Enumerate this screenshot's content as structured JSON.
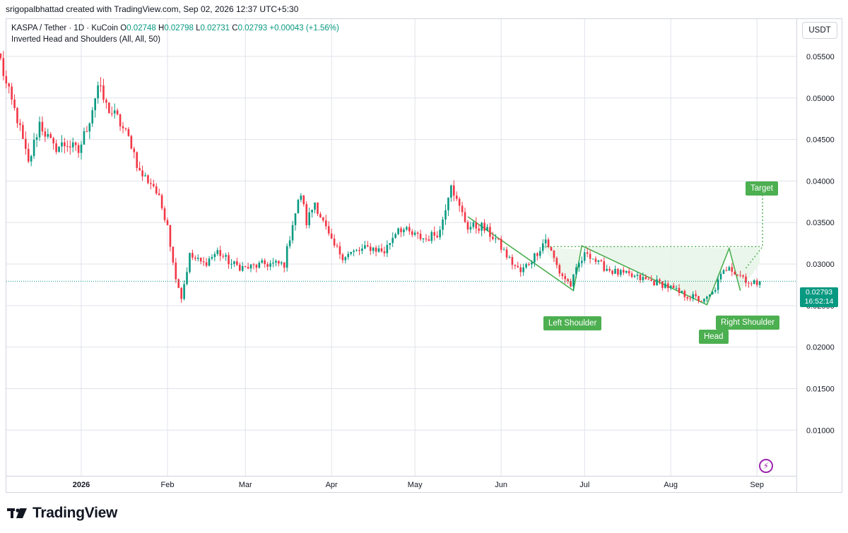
{
  "header": {
    "attribution": "srigopalbhattad created with TradingView.com, Sep 02, 2026 12:37 UTC+5:30"
  },
  "legend": {
    "symbol": "KASPA / Tether · 1D · KuCoin",
    "open_label": "O",
    "open": "0.02748",
    "high_label": "H",
    "high": "0.02798",
    "low_label": "L",
    "low": "0.02731",
    "close_label": "C",
    "close": "0.02793",
    "change": "+0.00043 (+1.56%)",
    "indicator": "Inverted Head and Shoulders (All, All, 50)"
  },
  "currency_button": "USDT",
  "price_tag": {
    "price": "0.02793",
    "countdown": "16:52:14"
  },
  "pattern_labels": {
    "left_shoulder": "Left Shoulder",
    "head": "Head",
    "right_shoulder": "Right Shoulder",
    "target": "Target"
  },
  "brand": {
    "name": "TradingView",
    "logo_icon": "tradingview-logo-icon"
  },
  "colors": {
    "up": "#089981",
    "down": "#f23645",
    "pattern": "#4caf50",
    "pattern_fill": "#e8f5e9",
    "grid": "#e0e3eb"
  },
  "chart_data": {
    "type": "candlestick",
    "title": "",
    "symbol": "KASPA / Tether",
    "interval": "1D",
    "exchange": "KuCoin",
    "ylim": [
      0.0045,
      0.0595
    ],
    "y_ticks": [
      "0.05500",
      "0.05000",
      "0.04500",
      "0.04000",
      "0.03500",
      "0.03000",
      "0.02500",
      "0.02000",
      "0.01500",
      "0.01000"
    ],
    "x_ticks": [
      "2026",
      "Feb",
      "Mar",
      "Apr",
      "May",
      "Jun",
      "Jul",
      "Aug",
      "Sep"
    ],
    "grid": true,
    "last_price": 0.02793,
    "close_path": [
      [
        "2025-12-03",
        0.0545
      ],
      [
        "2025-12-05",
        0.0515
      ],
      [
        "2025-12-09",
        0.0475
      ],
      [
        "2025-12-13",
        0.042
      ],
      [
        "2025-12-17",
        0.047
      ],
      [
        "2025-12-22",
        0.044
      ],
      [
        "2025-12-27",
        0.0445
      ],
      [
        "2025-12-31",
        0.0435
      ],
      [
        "2026-01-04",
        0.0475
      ],
      [
        "2026-01-07",
        0.0515
      ],
      [
        "2026-01-10",
        0.049
      ],
      [
        "2026-01-14",
        0.0475
      ],
      [
        "2026-01-19",
        0.0445
      ],
      [
        "2026-01-22",
        0.041
      ],
      [
        "2026-01-27",
        0.0395
      ],
      [
        "2026-02-01",
        0.035
      ],
      [
        "2026-02-03",
        0.03
      ],
      [
        "2026-02-06",
        0.026
      ],
      [
        "2026-02-09",
        0.031
      ],
      [
        "2026-02-14",
        0.03
      ],
      [
        "2026-02-19",
        0.0315
      ],
      [
        "2026-02-24",
        0.03
      ],
      [
        "2026-03-01",
        0.0295
      ],
      [
        "2026-03-08",
        0.03
      ],
      [
        "2026-03-15",
        0.03
      ],
      [
        "2026-03-18",
        0.035
      ],
      [
        "2026-03-21",
        0.0385
      ],
      [
        "2026-03-23",
        0.035
      ],
      [
        "2026-03-26",
        0.0375
      ],
      [
        "2026-03-29",
        0.035
      ],
      [
        "2026-04-01",
        0.0325
      ],
      [
        "2026-04-05",
        0.031
      ],
      [
        "2026-04-10",
        0.0315
      ],
      [
        "2026-04-15",
        0.032
      ],
      [
        "2026-04-20",
        0.0315
      ],
      [
        "2026-04-25",
        0.0345
      ],
      [
        "2026-04-30",
        0.0335
      ],
      [
        "2026-05-05",
        0.033
      ],
      [
        "2026-05-10",
        0.034
      ],
      [
        "2026-05-12",
        0.037
      ],
      [
        "2026-05-14",
        0.04
      ],
      [
        "2026-05-16",
        0.0375
      ],
      [
        "2026-05-18",
        0.036
      ],
      [
        "2026-05-20",
        0.0345
      ],
      [
        "2026-05-25",
        0.0345
      ],
      [
        "2026-05-30",
        0.033
      ],
      [
        "2026-06-04",
        0.0305
      ],
      [
        "2026-06-08",
        0.029
      ],
      [
        "2026-06-13",
        0.031
      ],
      [
        "2026-06-17",
        0.033
      ],
      [
        "2026-06-22",
        0.029
      ],
      [
        "2026-06-26",
        0.0275
      ],
      [
        "2026-06-29",
        0.03
      ],
      [
        "2026-07-02",
        0.0315
      ],
      [
        "2026-07-06",
        0.03
      ],
      [
        "2026-07-12",
        0.029
      ],
      [
        "2026-07-18",
        0.0285
      ],
      [
        "2026-07-24",
        0.028
      ],
      [
        "2026-07-30",
        0.0275
      ],
      [
        "2026-08-04",
        0.0265
      ],
      [
        "2026-08-09",
        0.026
      ],
      [
        "2026-08-13",
        0.0255
      ],
      [
        "2026-08-16",
        0.0265
      ],
      [
        "2026-08-19",
        0.0285
      ],
      [
        "2026-08-22",
        0.03
      ],
      [
        "2026-08-24",
        0.029
      ],
      [
        "2026-08-27",
        0.0285
      ],
      [
        "2026-08-30",
        0.0275
      ],
      [
        "2026-09-02",
        0.02793
      ]
    ],
    "pattern": {
      "name": "Inverted Head and Shoulders",
      "points": [
        {
          "label": "",
          "date": "2026-05-20",
          "price": 0.0357
        },
        {
          "label": "Left Shoulder",
          "date": "2026-06-27",
          "price": 0.0268
        },
        {
          "label": "",
          "date": "2026-06-30",
          "price": 0.0322
        },
        {
          "label": "Head",
          "date": "2026-08-14",
          "price": 0.0251
        },
        {
          "label": "",
          "date": "2026-08-22",
          "price": 0.0319
        },
        {
          "label": "Right Shoulder",
          "date": "2026-08-26",
          "price": 0.0268
        }
      ],
      "neckline": 0.0321,
      "target": {
        "label": "Target",
        "price": 0.0389
      }
    }
  }
}
